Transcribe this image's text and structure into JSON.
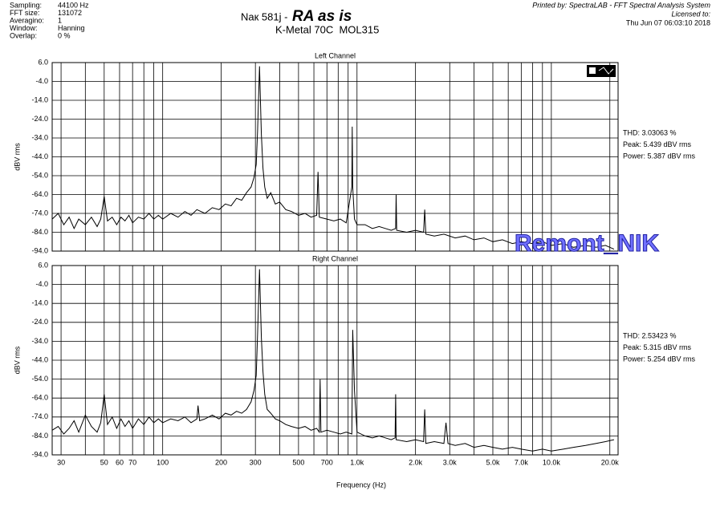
{
  "header": {
    "settings": [
      [
        "Sampling:",
        "44100 Hz"
      ],
      [
        "FFT size:",
        "131072"
      ],
      [
        "Averagino:",
        "1"
      ],
      [
        "Window:",
        "Hanning"
      ],
      [
        "Overlap:",
        "0 %"
      ]
    ],
    "title": "Nак 581j -",
    "title_emphasis": "RA as is",
    "subtitle": "K-Metal 70C  MOL315",
    "printed_by": "Printed by: SpectraLAB - FFT Spectral Analysis System",
    "licensed_to": "Licensed to:",
    "date": "Thu Jun 07 06:03:10 2018"
  },
  "watermark": "Remont_NIK",
  "chart_data": [
    {
      "type": "line",
      "title": "Left Channel",
      "ylabel": "dBV rms",
      "xscale": "log",
      "color": "#000000",
      "grid": true,
      "stats": [
        "THD: 3.03063 %",
        "Peak: 5.439 dBV rms",
        "Power: 5.387 dBV rms"
      ],
      "xlim": [
        27,
        22050
      ],
      "ylim": [
        -94,
        6
      ],
      "xgrid": [
        30,
        40,
        50,
        60,
        70,
        80,
        90,
        100,
        200,
        300,
        400,
        500,
        600,
        700,
        800,
        900,
        1000,
        2000,
        3000,
        4000,
        5000,
        6000,
        7000,
        8000,
        9000,
        10000,
        20000
      ],
      "yticks": [
        {
          "value": 6,
          "label": "6.0"
        },
        {
          "value": -4,
          "label": "-4.0"
        },
        {
          "value": -14,
          "label": "-14.0"
        },
        {
          "value": -24,
          "label": "-24.0"
        },
        {
          "value": -34,
          "label": "-34.0"
        },
        {
          "value": -44,
          "label": "-44.0"
        },
        {
          "value": -54,
          "label": "-54.0"
        },
        {
          "value": -64,
          "label": "-64.0"
        },
        {
          "value": -74,
          "label": "-74.0"
        },
        {
          "value": -84,
          "label": "-84.0"
        },
        {
          "value": -94,
          "label": "-94.0"
        }
      ],
      "x": [
        27,
        29,
        31,
        33,
        35,
        37,
        40,
        43,
        46,
        48,
        50,
        52,
        55,
        58,
        61,
        64,
        67,
        70,
        75,
        80,
        85,
        90,
        95,
        100,
        110,
        120,
        130,
        140,
        150,
        165,
        180,
        195,
        210,
        225,
        240,
        255,
        270,
        285,
        295,
        303,
        308,
        312,
        315,
        318,
        322,
        328,
        335,
        345,
        360,
        380,
        400,
        430,
        460,
        500,
        540,
        580,
        620,
        630,
        640,
        700,
        760,
        820,
        880,
        940,
        945,
        950,
        970,
        1000,
        1100,
        1200,
        1300,
        1400,
        1500,
        1580,
        1590,
        1600,
        1800,
        2000,
        2200,
        2230,
        2260,
        2500,
        2800,
        3200,
        3600,
        4000,
        4500,
        5000,
        5600,
        6300,
        7000,
        8000,
        9000,
        10000,
        11500,
        13000,
        15000,
        17000,
        19000,
        21000
      ],
      "values": [
        -77,
        -74,
        -80,
        -76,
        -82,
        -77,
        -80,
        -76,
        -81,
        -77,
        -65,
        -78,
        -76,
        -80,
        -76,
        -78,
        -75,
        -79,
        -76,
        -77,
        -74,
        -77,
        -75,
        -77,
        -74,
        -76,
        -73,
        -75,
        -72,
        -74,
        -71,
        -72,
        -69,
        -70,
        -66,
        -67,
        -63,
        -60,
        -55,
        -48,
        -30,
        -10,
        4,
        -12,
        -32,
        -50,
        -60,
        -66,
        -63,
        -69,
        -68,
        -72,
        -73,
        -75,
        -74,
        -76,
        -75,
        -52,
        -76,
        -77,
        -78,
        -77,
        -79,
        -60,
        -28,
        -60,
        -77,
        -80,
        -80,
        -82,
        -81,
        -82,
        -83,
        -82,
        -64,
        -83,
        -84,
        -83,
        -84,
        -72,
        -85,
        -86,
        -85,
        -87,
        -86,
        -88,
        -87,
        -89,
        -88,
        -90,
        -89,
        -90,
        -89,
        -91,
        -90,
        -92,
        -91,
        -92,
        -91,
        -93
      ]
    },
    {
      "type": "line",
      "title": "Right Channel",
      "ylabel": "dBV rms",
      "xlabel": "Frequency (Hz)",
      "xscale": "log",
      "color": "#000000",
      "grid": true,
      "stats": [
        "THD: 2.53423 %",
        "Peak: 5.315 dBV rms",
        "Power: 5.254 dBV rms"
      ],
      "xlim": [
        27,
        22050
      ],
      "ylim": [
        -94,
        6
      ],
      "xgrid": [
        40,
        80,
        90,
        400,
        600,
        800,
        900,
        4000,
        6000,
        8000,
        9000
      ],
      "xticks": [
        30,
        50,
        60,
        70,
        100,
        200,
        300,
        500,
        700,
        {
          "value": 1000,
          "label": "1.0k"
        },
        {
          "value": 2000,
          "label": "2.0k"
        },
        {
          "value": 3000,
          "label": "3.0k"
        },
        {
          "value": 5000,
          "label": "5.0k"
        },
        {
          "value": 7000,
          "label": "7.0k"
        },
        {
          "value": 10000,
          "label": "10.0k"
        },
        {
          "value": 20000,
          "label": "20.0k"
        }
      ],
      "yticks": [
        {
          "value": 6,
          "label": "6.0"
        },
        {
          "value": -4,
          "label": "-4.0"
        },
        {
          "value": -14,
          "label": "-14.0"
        },
        {
          "value": -24,
          "label": "-24.0"
        },
        {
          "value": -34,
          "label": "-34.0"
        },
        {
          "value": -44,
          "label": "-44.0"
        },
        {
          "value": -54,
          "label": "-54.0"
        },
        {
          "value": -64,
          "label": "-64.0"
        },
        {
          "value": -74,
          "label": "-74.0"
        },
        {
          "value": -84,
          "label": "-84.0"
        },
        {
          "value": -94,
          "label": "-94.0"
        }
      ],
      "x": [
        27,
        29,
        31,
        33,
        35,
        37,
        40,
        43,
        46,
        48,
        50,
        52,
        55,
        58,
        61,
        64,
        67,
        70,
        75,
        80,
        85,
        90,
        95,
        100,
        110,
        120,
        130,
        140,
        150,
        152,
        155,
        165,
        180,
        195,
        210,
        225,
        240,
        255,
        270,
        285,
        295,
        303,
        308,
        312,
        315,
        318,
        322,
        328,
        335,
        345,
        360,
        380,
        400,
        430,
        460,
        500,
        540,
        580,
        620,
        640,
        646,
        652,
        700,
        760,
        820,
        880,
        940,
        945,
        950,
        970,
        1000,
        1100,
        1200,
        1300,
        1400,
        1500,
        1570,
        1580,
        1590,
        1800,
        2000,
        2200,
        2230,
        2260,
        2500,
        2800,
        2870,
        2940,
        3200,
        3600,
        4000,
        4500,
        5000,
        5600,
        6300,
        7000,
        8000,
        9000,
        10000,
        11500,
        13000,
        15000,
        17000,
        19000,
        21000
      ],
      "values": [
        -81,
        -79,
        -83,
        -80,
        -76,
        -82,
        -73,
        -79,
        -82,
        -77,
        -62,
        -78,
        -74,
        -80,
        -75,
        -79,
        -76,
        -80,
        -75,
        -78,
        -74,
        -77,
        -75,
        -77,
        -75,
        -76,
        -74,
        -77,
        -75,
        -68,
        -76,
        -75,
        -73,
        -75,
        -72,
        -73,
        -71,
        -72,
        -70,
        -66,
        -60,
        -52,
        -30,
        -10,
        4,
        -12,
        -32,
        -50,
        -62,
        -70,
        -72,
        -75,
        -76,
        -78,
        -79,
        -80,
        -79,
        -81,
        -80,
        -82,
        -54,
        -82,
        -81,
        -82,
        -83,
        -82,
        -83,
        -60,
        -28,
        -60,
        -82,
        -84,
        -85,
        -84,
        -85,
        -86,
        -85,
        -62,
        -86,
        -87,
        -86,
        -87,
        -70,
        -88,
        -87,
        -88,
        -77,
        -88,
        -89,
        -88,
        -90,
        -89,
        -90,
        -91,
        -90,
        -91,
        -92,
        -91,
        -92,
        -91,
        -90,
        -89,
        -88,
        -87,
        -86
      ]
    }
  ]
}
